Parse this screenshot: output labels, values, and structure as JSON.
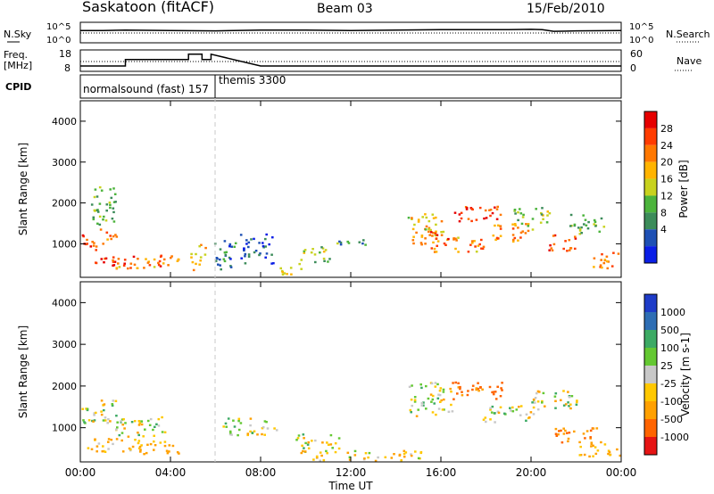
{
  "header": {
    "title": "Saskatoon (fitACF)",
    "beam": "Beam 03",
    "date": "15/Feb/2010"
  },
  "noise_panel": {
    "left_label": "N.Sky",
    "left_ticks": [
      "10^5",
      "10^0"
    ],
    "right_ticks": [
      "10^5",
      "10^0"
    ],
    "right_label": "N.Search"
  },
  "freq_panel": {
    "left_label_1": "Freq.",
    "left_label_2": "[MHz]",
    "left_ticks": [
      "18",
      "8"
    ],
    "right_ticks": [
      "60",
      "0"
    ],
    "right_label": "Nave",
    "cpid_label": "CPID",
    "cpid_1": "normalsound (fast) 157",
    "cpid_2": "themis 3300"
  },
  "colors": {
    "power_scale": [
      "#0a1ee6",
      "#1e50b4",
      "#3c8c5a",
      "#4cb43c",
      "#c8d21e",
      "#ffb400",
      "#ff7800",
      "#ff3c00",
      "#e60000"
    ],
    "velocity_scale": [
      "#1e3cc8",
      "#2e6eb4",
      "#3caa64",
      "#64c832",
      "#c8c8c8",
      "#ffc800",
      "#ffa000",
      "#ff6400",
      "#e61414"
    ]
  },
  "chart_data": [
    {
      "type": "line",
      "title": "Saskatoon (fitACF)",
      "panel": "noise",
      "x": [
        0,
        1,
        2,
        4,
        6,
        8,
        10,
        12,
        14,
        16,
        18,
        19,
        20,
        20.5,
        21,
        22,
        24
      ],
      "series": [
        {
          "name": "N.Sky",
          "values": [
            3.0,
            3.0,
            3.1,
            3.0,
            2.9,
            3.1,
            3.1,
            3.0,
            3.1,
            3.2,
            3.2,
            3.2,
            3.3,
            3.2,
            2.8,
            2.9,
            3.0
          ]
        }
      ],
      "xlim": [
        0,
        24
      ]
    },
    {
      "type": "line",
      "panel": "frequency",
      "x": [
        0,
        2,
        2,
        4.8,
        4.8,
        5.4,
        5.4,
        5.8,
        5.8,
        8,
        12,
        16,
        20,
        24
      ],
      "series": [
        {
          "name": "Freq.",
          "values": [
            10.5,
            10.5,
            13.5,
            13.5,
            16,
            16,
            13.5,
            13.5,
            16,
            10.5,
            10.5,
            10.5,
            10.5,
            10.5
          ]
        }
      ],
      "ylim": [
        8,
        18
      ],
      "xlim": [
        0,
        24
      ]
    },
    {
      "type": "heatmap",
      "panel": "power",
      "ylabel": "Slant Range [km]",
      "colorbar_label": "Power [dB]",
      "colorbar_ticks": [
        "28",
        "24",
        "20",
        "16",
        "12",
        "8",
        "4"
      ],
      "yticks": [
        "4000",
        "3000",
        "2000",
        "1000"
      ],
      "ylim": [
        180,
        4500
      ],
      "xlim": [
        0,
        24
      ],
      "blobs": [
        {
          "t": 0.5,
          "r": 1050,
          "w": 0.6,
          "h": 260,
          "v": 26
        },
        {
          "t": 1.2,
          "r": 1250,
          "w": 0.5,
          "h": 180,
          "v": 24
        },
        {
          "t": 1.5,
          "r": 600,
          "w": 1.1,
          "h": 160,
          "v": 27
        },
        {
          "t": 2.5,
          "r": 550,
          "w": 1.4,
          "h": 170,
          "v": 22
        },
        {
          "t": 3.6,
          "r": 600,
          "w": 0.9,
          "h": 180,
          "v": 24
        },
        {
          "t": 1.0,
          "r": 1950,
          "w": 0.7,
          "h": 600,
          "v": 12
        },
        {
          "t": 5.2,
          "r": 700,
          "w": 0.4,
          "h": 400,
          "v": 20
        },
        {
          "t": 6.4,
          "r": 800,
          "w": 0.6,
          "h": 500,
          "v": 8
        },
        {
          "t": 7.8,
          "r": 900,
          "w": 0.9,
          "h": 450,
          "v": 5
        },
        {
          "t": 9.3,
          "r": 400,
          "w": 0.7,
          "h": 180,
          "v": 18
        },
        {
          "t": 10.4,
          "r": 750,
          "w": 0.8,
          "h": 250,
          "v": 14
        },
        {
          "t": 12.0,
          "r": 1100,
          "w": 0.8,
          "h": 150,
          "v": 10
        },
        {
          "t": 15.3,
          "r": 1500,
          "w": 1.0,
          "h": 350,
          "v": 18
        },
        {
          "t": 15.5,
          "r": 1150,
          "w": 1.0,
          "h": 250,
          "v": 24
        },
        {
          "t": 16.7,
          "r": 1000,
          "w": 1.5,
          "h": 220,
          "v": 22
        },
        {
          "t": 17.6,
          "r": 1750,
          "w": 1.3,
          "h": 250,
          "v": 27
        },
        {
          "t": 19.2,
          "r": 1300,
          "w": 1.2,
          "h": 280,
          "v": 22
        },
        {
          "t": 20.0,
          "r": 1700,
          "w": 1.0,
          "h": 300,
          "v": 14
        },
        {
          "t": 21.3,
          "r": 1050,
          "w": 0.8,
          "h": 260,
          "v": 26
        },
        {
          "t": 22.5,
          "r": 1500,
          "w": 1.0,
          "h": 300,
          "v": 12
        },
        {
          "t": 23.2,
          "r": 600,
          "w": 0.8,
          "h": 260,
          "v": 23
        }
      ]
    },
    {
      "type": "heatmap",
      "panel": "velocity",
      "ylabel": "Slant Range [km]",
      "colorbar_label": "Velocity [m s-1]",
      "colorbar_ticks": [
        "1000",
        "500",
        "100",
        "25",
        "-25",
        "-100",
        "-500",
        "-1000"
      ],
      "yticks": [
        "4000",
        "3000",
        "2000",
        "1000"
      ],
      "xticks": [
        "00:00",
        "04:00",
        "08:00",
        "12:00",
        "16:00",
        "20:00",
        "00:00"
      ],
      "xlabel": "Time UT",
      "ylim": [
        180,
        4500
      ],
      "xlim": [
        0,
        24
      ],
      "blobs": [
        {
          "t": 1.0,
          "r": 1400,
          "w": 1.2,
          "h": 350,
          "v": 0
        },
        {
          "t": 2.6,
          "r": 1050,
          "w": 1.4,
          "h": 300,
          "v": 0
        },
        {
          "t": 1.5,
          "r": 600,
          "w": 1.5,
          "h": 220,
          "v": -150
        },
        {
          "t": 3.5,
          "r": 550,
          "w": 1.2,
          "h": 200,
          "v": -200
        },
        {
          "t": 7.5,
          "r": 1050,
          "w": 1.5,
          "h": 260,
          "v": 0
        },
        {
          "t": 10.5,
          "r": 700,
          "w": 1.2,
          "h": 220,
          "v": 0
        },
        {
          "t": 12.5,
          "r": 350,
          "w": 3.5,
          "h": 150,
          "v": -80
        },
        {
          "t": 15.5,
          "r": 1700,
          "w": 1.2,
          "h": 500,
          "v": 0
        },
        {
          "t": 17.6,
          "r": 1900,
          "w": 1.4,
          "h": 280,
          "v": -600
        },
        {
          "t": 19.0,
          "r": 1350,
          "w": 1.5,
          "h": 250,
          "v": 0
        },
        {
          "t": 21.0,
          "r": 1700,
          "w": 1.3,
          "h": 300,
          "v": 0
        },
        {
          "t": 22.0,
          "r": 850,
          "w": 1.2,
          "h": 250,
          "v": -500
        },
        {
          "t": 23.0,
          "r": 500,
          "w": 1.2,
          "h": 220,
          "v": -150
        }
      ]
    }
  ]
}
